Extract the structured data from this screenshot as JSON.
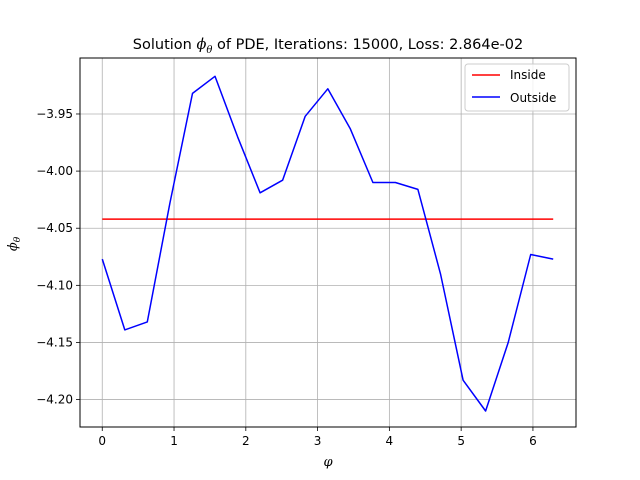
{
  "chart_data": {
    "type": "line",
    "title_prefix": "Solution ",
    "title_symbol": "ϕ",
    "title_subscript": "θ",
    "title_suffix": " of PDE, Iterations: 15000, Loss: 2.864e-02",
    "xlabel": "φ",
    "ylabel_symbol": "ϕ",
    "ylabel_subscript": "θ",
    "xlim": [
      -0.31,
      6.6
    ],
    "ylim": [
      -4.224,
      -3.901
    ],
    "xticks": [
      0,
      1,
      2,
      3,
      4,
      5,
      6
    ],
    "xtick_labels": [
      "0",
      "1",
      "2",
      "3",
      "4",
      "5",
      "6"
    ],
    "yticks": [
      -3.95,
      -4.0,
      -4.05,
      -4.1,
      -4.15,
      -4.2
    ],
    "ytick_labels": [
      "−3.95",
      "−4.00",
      "−4.05",
      "−4.10",
      "−4.15",
      "−4.20"
    ],
    "grid": true,
    "legend_position": "top-right",
    "series": [
      {
        "name": "Inside",
        "color": "#ff0000",
        "x": [
          0,
          6.283
        ],
        "y": [
          -4.042,
          -4.042
        ]
      },
      {
        "name": "Outside",
        "color": "#0000ff",
        "x": [
          0,
          0.314,
          0.628,
          0.942,
          1.257,
          1.571,
          1.885,
          2.199,
          2.513,
          2.827,
          3.142,
          3.456,
          3.77,
          4.084,
          4.398,
          4.712,
          5.027,
          5.341,
          5.655,
          5.969,
          6.283
        ],
        "y": [
          -4.077,
          -4.139,
          -4.132,
          -4.028,
          -3.932,
          -3.917,
          -3.97,
          -4.019,
          -4.008,
          -3.952,
          -3.928,
          -3.963,
          -4.01,
          -4.01,
          -4.016,
          -4.09,
          -4.183,
          -4.21,
          -4.15,
          -4.073,
          -4.077
        ]
      }
    ]
  }
}
